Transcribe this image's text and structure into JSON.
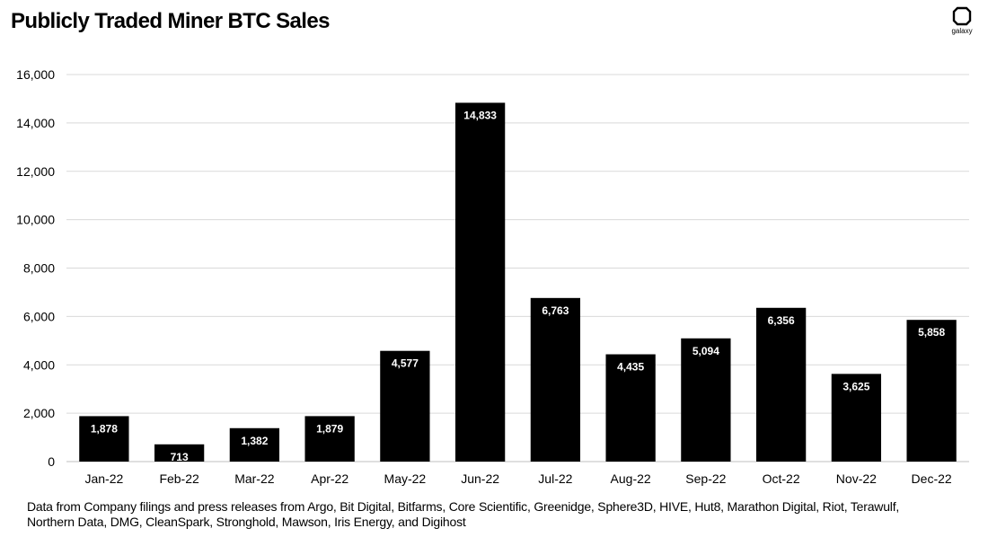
{
  "header": {
    "title": "Publicly Traded Miner BTC Sales",
    "brand": "galaxy"
  },
  "chart_data": {
    "type": "bar",
    "title": "Publicly Traded Miner BTC Sales",
    "xlabel": "",
    "ylabel": "",
    "categories": [
      "Jan-22",
      "Feb-22",
      "Mar-22",
      "Apr-22",
      "May-22",
      "Jun-22",
      "Jul-22",
      "Aug-22",
      "Sep-22",
      "Oct-22",
      "Nov-22",
      "Dec-22"
    ],
    "values": [
      1878,
      713,
      1382,
      1879,
      4577,
      14833,
      6763,
      4435,
      5094,
      6356,
      3625,
      5858
    ],
    "data_labels": [
      "1,878",
      "713",
      "1,382",
      "1,879",
      "4,577",
      "14,833",
      "6,763",
      "4,435",
      "5,094",
      "6,356",
      "3,625",
      "5,858"
    ],
    "ylim": [
      0,
      16000
    ],
    "yticks": [
      0,
      2000,
      4000,
      6000,
      8000,
      10000,
      12000,
      14000,
      16000
    ],
    "ytick_labels": [
      "0",
      "2,000",
      "4,000",
      "6,000",
      "8,000",
      "10,000",
      "12,000",
      "14,000",
      "16,000"
    ],
    "grid": true,
    "bar_color": "#000000",
    "label_color": "#ffffff",
    "grid_color": "#d9d9d9"
  },
  "footnote": "Data from Company filings and press releases from Argo, Bit Digital, Bitfarms, Core Scientific, Greenidge, Sphere3D, HIVE, Hut8, Marathon Digital, Riot, Terawulf, Northern Data, DMG, CleanSpark, Stronghold, Mawson, Iris Energy, and Digihost"
}
